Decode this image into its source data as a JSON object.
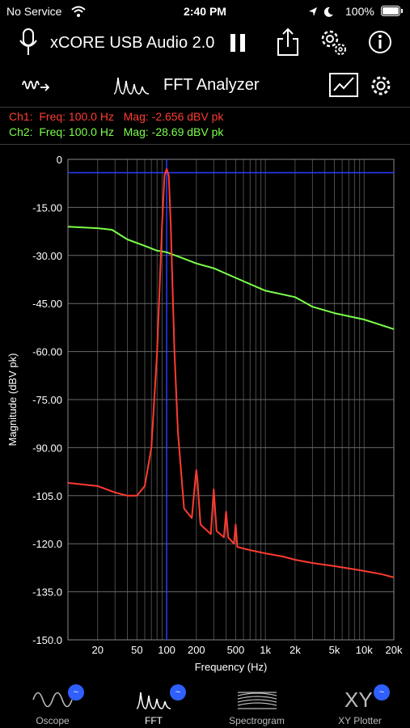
{
  "status": {
    "carrier": "No Service",
    "time": "2:40 PM",
    "battery": "100%"
  },
  "header": {
    "device_name": "xCORE USB Audio 2.0"
  },
  "toolbar": {
    "title": "FFT Analyzer"
  },
  "readouts": {
    "ch1": {
      "label": "Ch1:",
      "freq": "Freq: 100.0 Hz",
      "mag": "Mag: -2.656 dBV pk",
      "color": "#ff3b30"
    },
    "ch2": {
      "label": "Ch2:",
      "freq": "Freq: 100.0 Hz",
      "mag": "Mag: -28.69 dBV pk",
      "color": "#7cff4a"
    }
  },
  "chart_data": {
    "type": "line",
    "xlabel": "Frequency (Hz)",
    "ylabel": "Magnitude (dBV pk)",
    "x_scale": "log",
    "xlim": [
      10,
      20000
    ],
    "ylim": [
      -150,
      0
    ],
    "grid": true,
    "x_tick_labels": [
      "20",
      "50",
      "100",
      "200",
      "500",
      "1k",
      "2k",
      "5k",
      "10k",
      "20k"
    ],
    "x_tick_values": [
      20,
      50,
      100,
      200,
      500,
      1000,
      2000,
      5000,
      10000,
      20000
    ],
    "y_tick_labels": [
      "0",
      "-15.00",
      "-30.00",
      "-45.00",
      "-60.00",
      "-75.00",
      "-90.00",
      "-105.0",
      "-120.0",
      "-135.0",
      "-150.0"
    ],
    "y_tick_values": [
      0,
      -15,
      -30,
      -45,
      -60,
      -75,
      -90,
      -105,
      -120,
      -135,
      -150
    ],
    "cursor": {
      "x": 100,
      "y": -2.656
    },
    "series": [
      {
        "color": "#ff3b30",
        "x": [
          10,
          20,
          30,
          40,
          50,
          60,
          70,
          80,
          90,
          95,
          100,
          105,
          110,
          120,
          130,
          150,
          180,
          195,
          200,
          205,
          220,
          280,
          300,
          320,
          380,
          400,
          420,
          480,
          500,
          520,
          700,
          1000,
          1500,
          2000,
          3000,
          5000,
          8000,
          10000,
          15000,
          20000
        ],
        "y": [
          -101,
          -102,
          -104,
          -105,
          -105,
          -102,
          -90,
          -60,
          -20,
          -5,
          -3,
          -5,
          -20,
          -60,
          -85,
          -109,
          -112,
          -100,
          -97,
          -100,
          -114,
          -117,
          -103,
          -116,
          -118,
          -110,
          -118,
          -120,
          -114,
          -121,
          -122,
          -123,
          -124,
          -125,
          -126,
          -127,
          -128,
          -128.5,
          -129.5,
          -130.5
        ]
      },
      {
        "color": "#7cff4a",
        "x": [
          10,
          20,
          28,
          40,
          60,
          80,
          100,
          150,
          200,
          300,
          500,
          1000,
          2000,
          3000,
          5000,
          10000,
          20000
        ],
        "y": [
          -21,
          -21.5,
          -22,
          -25,
          -27,
          -28.5,
          -29,
          -31,
          -32.5,
          -34,
          -37,
          -41,
          -43,
          -46,
          -48,
          -50,
          -53
        ]
      }
    ]
  },
  "tabs": [
    {
      "label": "Oscope"
    },
    {
      "label": "FFT"
    },
    {
      "label": "Spectrogram"
    },
    {
      "label": "XY Plotter"
    }
  ],
  "badge_glyph": "~",
  "xy_glyph": "XY"
}
